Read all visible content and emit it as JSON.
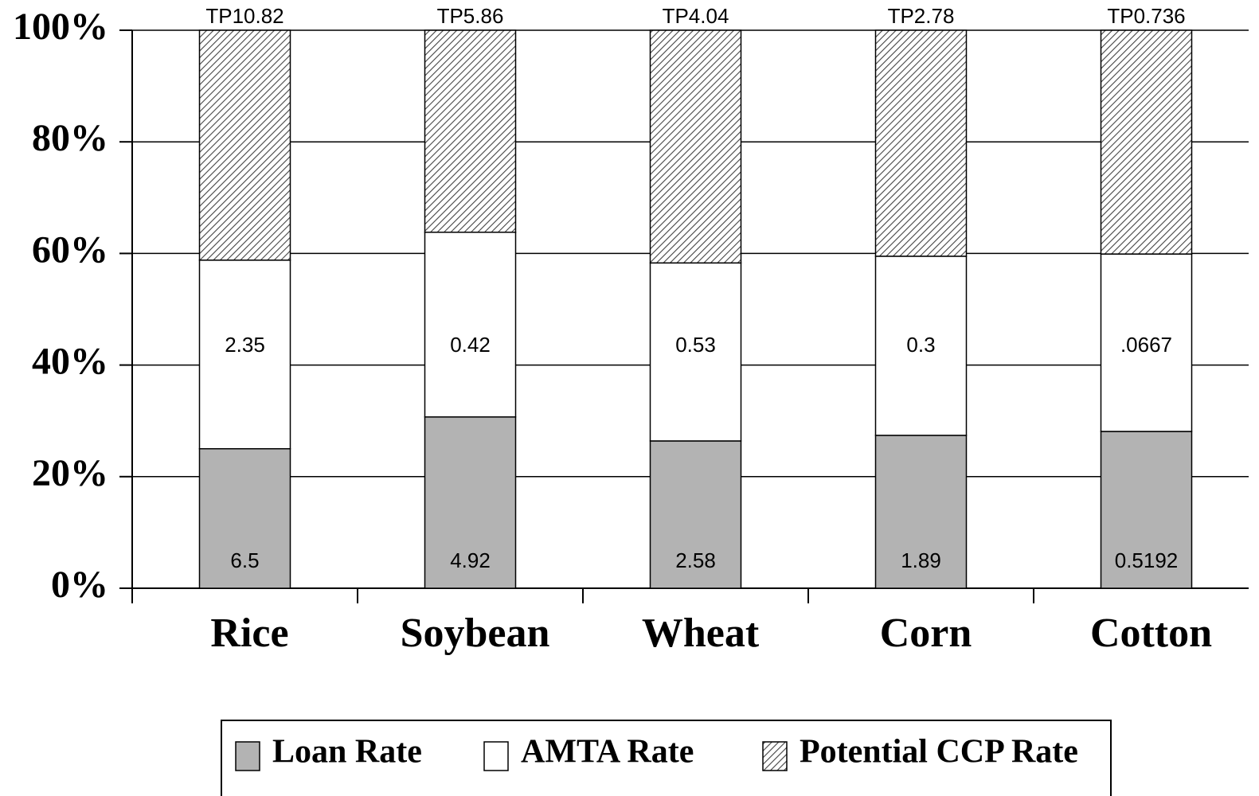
{
  "chart_data": {
    "type": "stacked-bar-percent",
    "categories": [
      "Rice",
      "Soybean",
      "Wheat",
      "Corn",
      "Cotton"
    ],
    "series": [
      {
        "name": "Loan Rate",
        "color": "#b3b3b3",
        "values": [
          25.0,
          30.7,
          26.4,
          27.4,
          28.1
        ],
        "labels": [
          "6.5",
          "4.92",
          "2.58",
          "1.89",
          "0.5192"
        ]
      },
      {
        "name": "AMTA Rate",
        "color": "#ffffff",
        "values": [
          33.8,
          33.1,
          31.9,
          32.1,
          31.8
        ],
        "labels": [
          "2.35",
          "0.42",
          "0.53",
          "0.3",
          ".0667"
        ]
      },
      {
        "name": "Potential CCP Rate",
        "color": "#444444",
        "pattern": "hatch",
        "values": [
          41.2,
          36.2,
          41.7,
          40.5,
          40.1
        ]
      }
    ],
    "top_labels": [
      "TP10.82",
      "TP5.86",
      "TP4.04",
      "TP2.78",
      "TP0.736"
    ],
    "ylim": [
      0,
      100
    ],
    "yticks": [
      {
        "value": 0,
        "label": "0%"
      },
      {
        "value": 20,
        "label": "20%"
      },
      {
        "value": 40,
        "label": "40%"
      },
      {
        "value": 60,
        "label": "60%"
      },
      {
        "value": 80,
        "label": "80%"
      },
      {
        "value": 100,
        "label": "100%"
      }
    ],
    "grid": true,
    "legend": "bottom"
  }
}
